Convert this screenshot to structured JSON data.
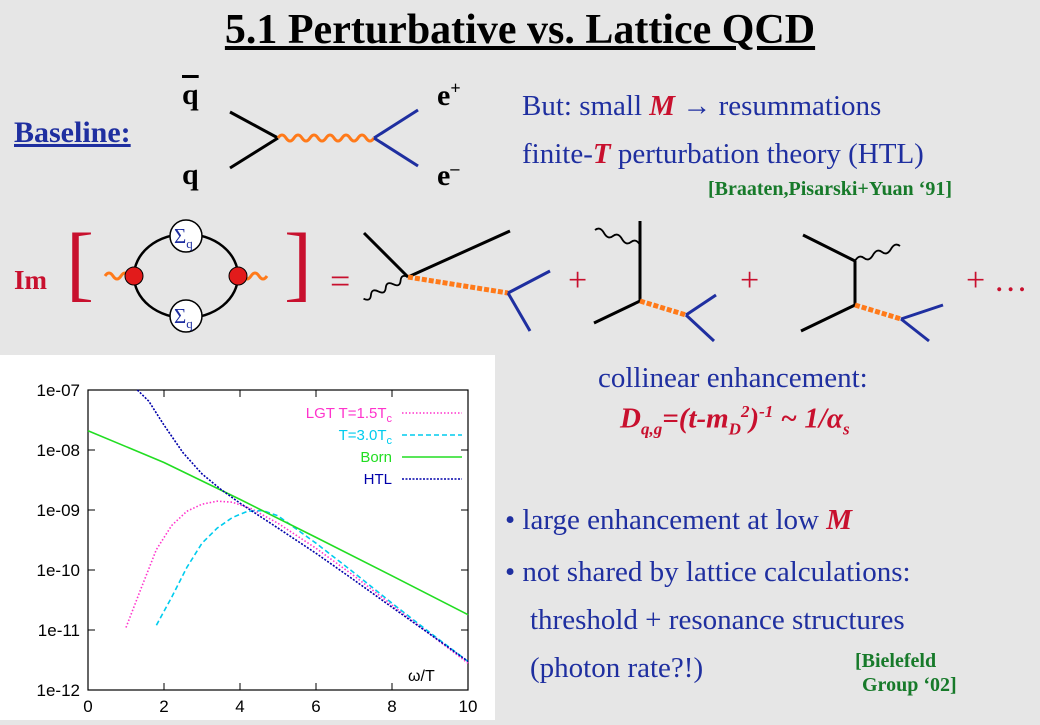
{
  "title": "5.1 Perturbative vs. Lattice QCD",
  "baseline": {
    "label": "Baseline:",
    "q_bar": "q",
    "q": "q",
    "e_plus": "e",
    "e_plus_sup": "+",
    "e_minus": "e",
    "e_minus_sup": "–"
  },
  "remark": {
    "line1_a": "But: small ",
    "line1_M": "M",
    "line1_b": " → resummations",
    "line2_a": "finite-",
    "line2_T": "T",
    "line2_b": " perturbation theory (HTL)",
    "ref": "[Braaten,Pisarski+Yuan ‘91]"
  },
  "equation": {
    "im": "Im",
    "lbracket": "[",
    "rbracket": "]",
    "sigma": "Σ",
    "sigma_sub": "q",
    "equals": "=",
    "plus1": "+",
    "plus2": "+",
    "plus3": "+ …"
  },
  "collinear": {
    "line1": "collinear enhancement:",
    "D": "D",
    "D_sub": "q,g",
    "eq_a": "=(t-m",
    "mD_sub": "D",
    "sq": "2",
    "paren": ")",
    "inv": "-1",
    "approx": " ~ 1/α",
    "alpha_sub": "s"
  },
  "bullets": {
    "b1_a": "large enhancement at low ",
    "b1_M": "M",
    "b2": "not shared by lattice calculations:",
    "b3": "threshold + resonance structures",
    "b4": "(photon rate?!)",
    "ref_line1": "[Bielefeld",
    "ref_line2": "Group ‘02]"
  },
  "chart_data": {
    "type": "line",
    "xlabel": "ω/T",
    "ylabel": "",
    "xlim": [
      0,
      10
    ],
    "ylim": [
      1e-12,
      1e-07
    ],
    "y_scale": "log",
    "x_ticks": [
      "0",
      "2",
      "4",
      "6",
      "8",
      "10"
    ],
    "y_ticks": [
      "1e-12",
      "1e-11",
      "1e-10",
      "1e-09",
      "1e-08",
      "1e-07"
    ],
    "legend": [
      "LGT T=1.5T",
      "T=3.0T",
      "Born",
      "HTL"
    ],
    "legend_sub": "c",
    "legend_position": "top-right",
    "series": [
      {
        "name": "LGT T=1.5T",
        "color": "#ff33cc",
        "dash": "1.5,2",
        "x": [
          1.0,
          1.4,
          1.8,
          2.2,
          2.6,
          3.0,
          3.4,
          3.8,
          4.3,
          5.0,
          6.0,
          7.0,
          8.0,
          9.0,
          10.0
        ],
        "y": [
          1.1e-11,
          5e-11,
          2.2e-10,
          5.5e-10,
          9.5e-10,
          1.25e-09,
          1.4e-09,
          1.35e-09,
          1.05e-09,
          6e-10,
          2.3e-10,
          8e-11,
          2.6e-11,
          8.5e-12,
          2.8e-12
        ]
      },
      {
        "name": "T=3.0T",
        "color": "#00ccee",
        "dash": "5,3",
        "x": [
          1.8,
          2.2,
          2.6,
          3.0,
          3.4,
          3.8,
          4.2,
          4.6,
          5.0,
          6.0,
          7.0,
          8.0,
          9.0,
          10.0
        ],
        "y": [
          1.2e-11,
          3.5e-11,
          1.1e-10,
          2.8e-10,
          5e-10,
          7.5e-10,
          9.5e-10,
          9.8e-10,
          8e-10,
          2.8e-10,
          9e-11,
          2.8e-11,
          9e-12,
          3e-12
        ]
      },
      {
        "name": "Born",
        "color": "#22dd22",
        "dash": "",
        "x": [
          0,
          2,
          4,
          6,
          8,
          10
        ],
        "y": [
          2.1e-08,
          6.2e-09,
          1.5e-09,
          3.5e-10,
          8e-11,
          1.8e-11
        ]
      },
      {
        "name": "HTL",
        "color": "#0000aa",
        "dash": "2,1.5",
        "x": [
          1.3,
          1.6,
          2.0,
          2.5,
          3.0,
          3.5,
          4.0,
          5.0,
          6.0,
          7.0,
          8.0,
          9.0,
          10.0
        ],
        "y": [
          1e-07,
          6.5e-08,
          2.6e-08,
          9e-09,
          4e-09,
          2.2e-09,
          1.3e-09,
          5e-10,
          1.9e-10,
          6.8e-11,
          2.4e-11,
          8.5e-12,
          3e-12
        ]
      }
    ]
  }
}
